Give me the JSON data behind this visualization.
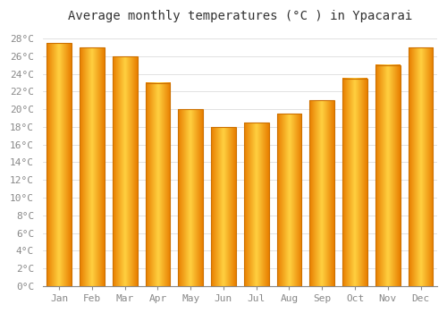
{
  "title": "Average monthly temperatures (°C ) in Ypacarai",
  "months": [
    "Jan",
    "Feb",
    "Mar",
    "Apr",
    "May",
    "Jun",
    "Jul",
    "Aug",
    "Sep",
    "Oct",
    "Nov",
    "Dec"
  ],
  "values": [
    27.5,
    27.0,
    26.0,
    23.0,
    20.0,
    18.0,
    18.5,
    19.5,
    21.0,
    23.5,
    25.0,
    27.0
  ],
  "bar_color_center": "#FFB700",
  "bar_color_edge": "#E87E00",
  "background_color": "#FFFFFF",
  "plot_bg_color": "#FFFFFF",
  "grid_color": "#DDDDDD",
  "ylim": [
    0,
    29
  ],
  "ytick_step": 2,
  "title_fontsize": 10,
  "tick_fontsize": 8,
  "tick_color": "#888888",
  "title_color": "#333333",
  "font_family": "monospace",
  "bar_width": 0.75,
  "bar_linewidth": 0.8,
  "bar_edge_color": "#CC7000"
}
